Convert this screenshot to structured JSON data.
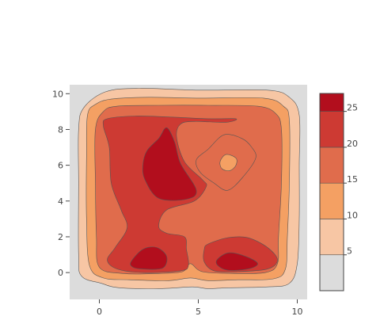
{
  "chart_data": {
    "type": "contour",
    "x_ticks": [
      "0",
      "5",
      "10"
    ],
    "y_ticks": [
      "0",
      "2",
      "4",
      "6",
      "8",
      "10"
    ],
    "xlim": [
      -1.5,
      10.5
    ],
    "ylim": [
      -1.5,
      10.5
    ],
    "levels": [
      0,
      5,
      10,
      15,
      20,
      25,
      27.5
    ],
    "colorbar_ticks": [
      "5",
      "10",
      "15",
      "20",
      "25"
    ],
    "colors": [
      "#dcdcdc",
      "#f7c6a4",
      "#f4a063",
      "#e06c4c",
      "#cd3a33",
      "#b20e1d"
    ],
    "plot_background": "#dcdcdc",
    "regions": [
      {
        "level": 5,
        "points": [
          [
            0.3,
            10.1
          ],
          [
            2,
            10.3
          ],
          [
            5,
            10.2
          ],
          [
            8.5,
            10.2
          ],
          [
            9.6,
            9.8
          ],
          [
            10.1,
            8.8
          ],
          [
            10.1,
            6
          ],
          [
            10.1,
            3
          ],
          [
            10,
            0.5
          ],
          [
            9.6,
            -0.6
          ],
          [
            8.5,
            -0.8
          ],
          [
            6.5,
            -0.85
          ],
          [
            5.5,
            -0.9
          ],
          [
            4.7,
            -0.8
          ],
          [
            3,
            -0.9
          ],
          [
            1,
            -0.85
          ],
          [
            0.1,
            -0.6
          ],
          [
            -0.9,
            -0.2
          ],
          [
            -1.05,
            1
          ],
          [
            -1.05,
            5
          ],
          [
            -1.05,
            8
          ],
          [
            -0.8,
            9.2
          ]
        ]
      },
      {
        "level": 10,
        "points": [
          [
            0.6,
            9.7
          ],
          [
            2.5,
            9.8
          ],
          [
            5,
            9.75
          ],
          [
            8.3,
            9.75
          ],
          [
            9.3,
            9.3
          ],
          [
            9.6,
            8.5
          ],
          [
            9.6,
            5
          ],
          [
            9.5,
            2
          ],
          [
            9.4,
            0.2
          ],
          [
            8.8,
            -0.35
          ],
          [
            7,
            -0.4
          ],
          [
            5.5,
            -0.45
          ],
          [
            4.6,
            -0.3
          ],
          [
            3.5,
            -0.45
          ],
          [
            1.5,
            -0.4
          ],
          [
            0.2,
            -0.3
          ],
          [
            -0.5,
            0.4
          ],
          [
            -0.65,
            3
          ],
          [
            -0.65,
            6.5
          ],
          [
            -0.6,
            8.8
          ],
          [
            -0.2,
            9.4
          ]
        ]
      },
      {
        "level": 15,
        "points": [
          [
            0.9,
            9.3
          ],
          [
            3,
            9.35
          ],
          [
            5.5,
            9.35
          ],
          [
            8,
            9.3
          ],
          [
            8.9,
            8.9
          ],
          [
            9.2,
            8
          ],
          [
            9.2,
            5
          ],
          [
            9.05,
            2
          ],
          [
            9,
            0.5
          ],
          [
            8.4,
            0
          ],
          [
            6.8,
            -0.05
          ],
          [
            5.2,
            0.05
          ],
          [
            4.6,
            0.5
          ],
          [
            4.2,
            0.05
          ],
          [
            3,
            -0.05
          ],
          [
            1.2,
            -0.05
          ],
          [
            0,
            0.3
          ],
          [
            -0.15,
            2
          ],
          [
            -0.2,
            5
          ],
          [
            -0.2,
            8
          ],
          [
            0.2,
            9
          ]
        ]
      },
      {
        "level": 20,
        "points": [
          [
            0.4,
            8.6
          ],
          [
            1.8,
            8.75
          ],
          [
            3.5,
            8.7
          ],
          [
            5.5,
            8.6
          ],
          [
            6.9,
            8.6
          ],
          [
            6.4,
            8.4
          ],
          [
            4.8,
            8.45
          ],
          [
            4.1,
            8.3
          ],
          [
            3.9,
            7.6
          ],
          [
            4.3,
            6.2
          ],
          [
            5.2,
            5.2
          ],
          [
            5.4,
            4.8
          ],
          [
            4.8,
            4
          ],
          [
            3.4,
            3.5
          ],
          [
            3,
            2.6
          ],
          [
            3.4,
            2.2
          ],
          [
            4.3,
            2
          ],
          [
            4.4,
            1.3
          ],
          [
            4.5,
            0.4
          ],
          [
            4.1,
            0.1
          ],
          [
            2.2,
            0
          ],
          [
            0.9,
            0.2
          ],
          [
            0.4,
            0.7
          ],
          [
            0.8,
            1.4
          ],
          [
            1.4,
            2.5
          ],
          [
            1.1,
            3.5
          ],
          [
            0.6,
            5
          ],
          [
            0.5,
            7
          ],
          [
            0.2,
            8.2
          ]
        ]
      },
      {
        "level": 20,
        "points": [
          [
            5.3,
            1.3
          ],
          [
            5.5,
            1.6
          ],
          [
            6.5,
            1.95
          ],
          [
            7.5,
            1.95
          ],
          [
            8.5,
            1.4
          ],
          [
            9,
            0.7
          ],
          [
            8.5,
            0.2
          ],
          [
            7,
            0.05
          ],
          [
            5.8,
            0.1
          ],
          [
            5.3,
            0.6
          ]
        ]
      },
      {
        "level": 25,
        "points": [
          [
            2.4,
            6.8
          ],
          [
            3,
            7.5
          ],
          [
            3.4,
            8.1
          ],
          [
            3.8,
            7.3
          ],
          [
            4.1,
            6.1
          ],
          [
            4.9,
            4.6
          ],
          [
            4.4,
            4.1
          ],
          [
            3,
            4.15
          ],
          [
            2.3,
            5.2
          ],
          [
            2.2,
            6
          ]
        ]
      },
      {
        "level": 25,
        "points": [
          [
            1.6,
            0.6
          ],
          [
            2.2,
            1.3
          ],
          [
            2.9,
            1.4
          ],
          [
            3.4,
            0.9
          ],
          [
            3.2,
            0.25
          ],
          [
            2.2,
            0.2
          ],
          [
            1.7,
            0.3
          ]
        ]
      },
      {
        "level": 25,
        "points": [
          [
            5.9,
            0.6
          ],
          [
            6.5,
            1.1
          ],
          [
            7.4,
            0.9
          ],
          [
            8,
            0.5
          ],
          [
            7.5,
            0.2
          ],
          [
            6.4,
            0.15
          ]
        ]
      },
      {
        "level": 15,
        "points": [
          [
            4.9,
            6.3
          ],
          [
            5.5,
            6.9
          ],
          [
            6.3,
            7.7
          ],
          [
            7.2,
            7.5
          ],
          [
            7.7,
            7
          ],
          [
            7.9,
            6.4
          ],
          [
            7.3,
            5.4
          ],
          [
            6.5,
            4.6
          ],
          [
            5.8,
            5
          ],
          [
            5.1,
            5.6
          ]
        ]
      },
      {
        "level": 10,
        "points": [
          [
            6.1,
            6.2
          ],
          [
            6.4,
            6.6
          ],
          [
            6.9,
            6.4
          ],
          [
            6.9,
            6
          ],
          [
            6.6,
            5.7
          ],
          [
            6.2,
            5.8
          ]
        ]
      }
    ]
  }
}
